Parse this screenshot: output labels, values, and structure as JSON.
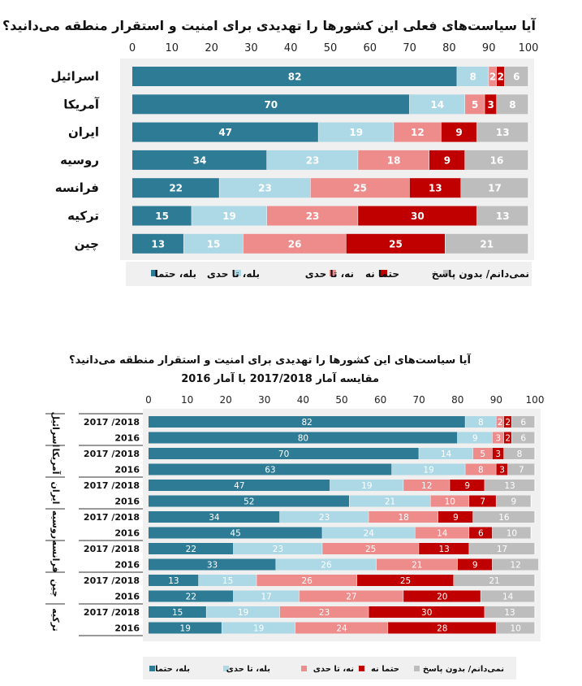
{
  "chart_data": [
    {
      "type": "bar",
      "stacked": true,
      "orientation": "horizontal",
      "title": "آیا سیاست‌های فعلی این کشورها را تهدیدی برای امنیت و استقرار منطقه می‌دانید؟",
      "xlim": [
        0,
        100
      ],
      "x_ticks": [
        "0",
        "10",
        "20",
        "30",
        "40",
        "50",
        "60",
        "70",
        "80",
        "90",
        "100"
      ],
      "categories": [
        "اسرائیل",
        "آمریکا",
        "ایران",
        "روسیه",
        "فرانسه",
        "ترکیه",
        "چین"
      ],
      "series": [
        {
          "name": "بله، حتما",
          "color": "#2e7b96",
          "values": [
            82,
            70,
            47,
            34,
            22,
            15,
            13
          ]
        },
        {
          "name": "بله، تا حدی",
          "color": "#add8e6",
          "values": [
            8,
            14,
            19,
            23,
            23,
            19,
            15
          ]
        },
        {
          "name": "نه، تا حدی",
          "color": "#ee8c8c",
          "values": [
            2,
            5,
            12,
            18,
            25,
            23,
            26
          ]
        },
        {
          "name": "حتما نه",
          "color": "#c00000",
          "values": [
            2,
            3,
            9,
            9,
            13,
            30,
            25
          ]
        },
        {
          "name": "نمی‌دانم/ بدون پاسخ",
          "color": "#bdbdbd",
          "values": [
            6,
            8,
            13,
            16,
            17,
            13,
            21
          ]
        }
      ],
      "legend_position": "bottom"
    },
    {
      "type": "bar",
      "stacked": true,
      "orientation": "horizontal",
      "title": "آیا سیاست‌های این کشورها را تهدیدی برای امنیت و استقرار منطقه می‌دانید؟",
      "subtitle": "مقایسه آمار 2017/2018 با آمار 2016",
      "xlim": [
        0,
        100
      ],
      "x_ticks": [
        "0",
        "10",
        "20",
        "30",
        "40",
        "50",
        "60",
        "70",
        "80",
        "90",
        "100"
      ],
      "groups": [
        "اسرائیل",
        "آمریکا",
        "ایران",
        "روسیه",
        "فرانسه",
        "چین",
        "ترکیه"
      ],
      "row_labels": [
        "2017 /2018",
        "2016",
        "2017 /2018",
        "2016",
        "2017 /2018",
        "2016",
        "2017 /2018",
        "2016",
        "2017 /2018",
        "2016",
        "2017 /2018",
        "2016",
        "2017 /2018",
        "2016"
      ],
      "series": [
        {
          "name": "بله، حتما",
          "color": "#2e7b96",
          "values": [
            82,
            80,
            70,
            63,
            47,
            52,
            34,
            45,
            22,
            33,
            13,
            22,
            15,
            19
          ]
        },
        {
          "name": "بله، تا حدی",
          "color": "#add8e6",
          "values": [
            8,
            9,
            14,
            19,
            19,
            21,
            23,
            24,
            23,
            26,
            15,
            17,
            19,
            19
          ]
        },
        {
          "name": "نه، تا حدی",
          "color": "#ee8c8c",
          "values": [
            2,
            3,
            5,
            8,
            12,
            10,
            18,
            14,
            25,
            21,
            26,
            27,
            23,
            24
          ]
        },
        {
          "name": "حتما نه",
          "color": "#c00000",
          "values": [
            2,
            2,
            3,
            3,
            9,
            7,
            9,
            6,
            13,
            9,
            25,
            20,
            30,
            28
          ]
        },
        {
          "name": "نمی‌دانم/ بدون پاسخ",
          "color": "#bdbdbd",
          "values": [
            6,
            6,
            8,
            7,
            13,
            9,
            16,
            10,
            17,
            12,
            21,
            14,
            13,
            10
          ]
        }
      ],
      "legend_position": "bottom"
    }
  ]
}
